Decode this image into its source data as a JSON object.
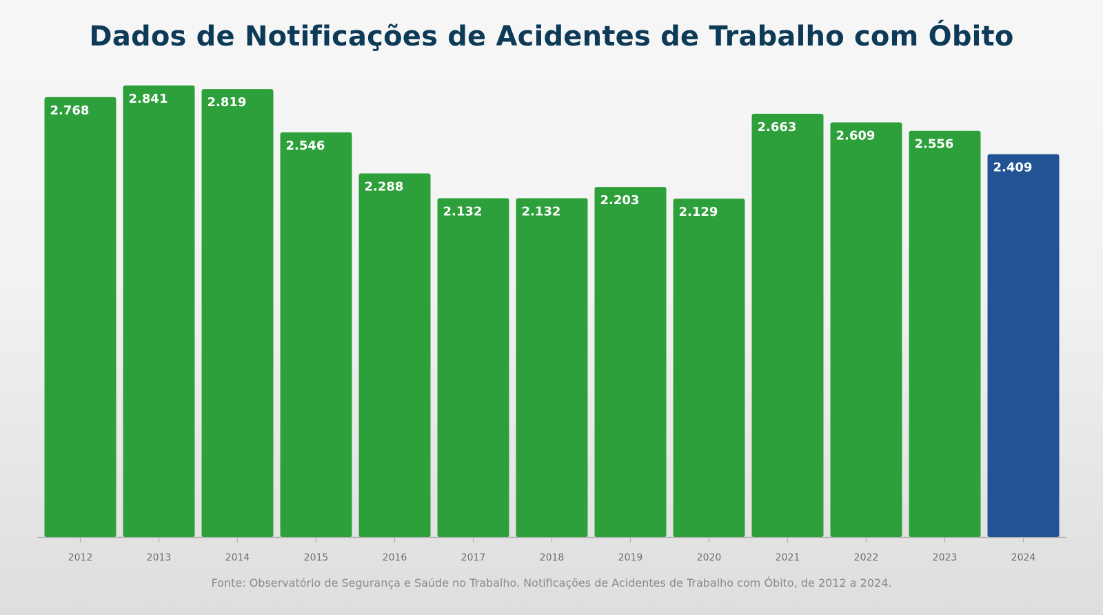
{
  "chart_data": {
    "type": "bar",
    "title": "Dados de Notificações de Acidentes de Trabalho com Óbito",
    "categories": [
      "2012",
      "2013",
      "2014",
      "2015",
      "2016",
      "2017",
      "2018",
      "2019",
      "2020",
      "2021",
      "2022",
      "2023",
      "2024"
    ],
    "values": [
      2768,
      2841,
      2819,
      2546,
      2288,
      2132,
      2132,
      2203,
      2129,
      2663,
      2609,
      2556,
      2409
    ],
    "value_labels": [
      "2.768",
      "2.841",
      "2.819",
      "2.546",
      "2.288",
      "2.132",
      "2.132",
      "2.203",
      "2.129",
      "2.663",
      "2.609",
      "2.556",
      "2.409"
    ],
    "xlabel": "",
    "ylabel": "",
    "ylim": [
      0,
      2841
    ],
    "grid": false,
    "legend": "none",
    "colors": {
      "default_bar": "#2ea03b",
      "highlight_bar": "#215395",
      "highlight_category": "2024",
      "value_label": "#ffffff",
      "axis": "#b0b0b0",
      "tick_label": "#6f6f6f"
    }
  },
  "source_note": "Fonte: Observatório de Segurança e Saúde no Trabalho. Notificações de Acidentes de Trabalho com Óbito, de 2012 a 2024."
}
